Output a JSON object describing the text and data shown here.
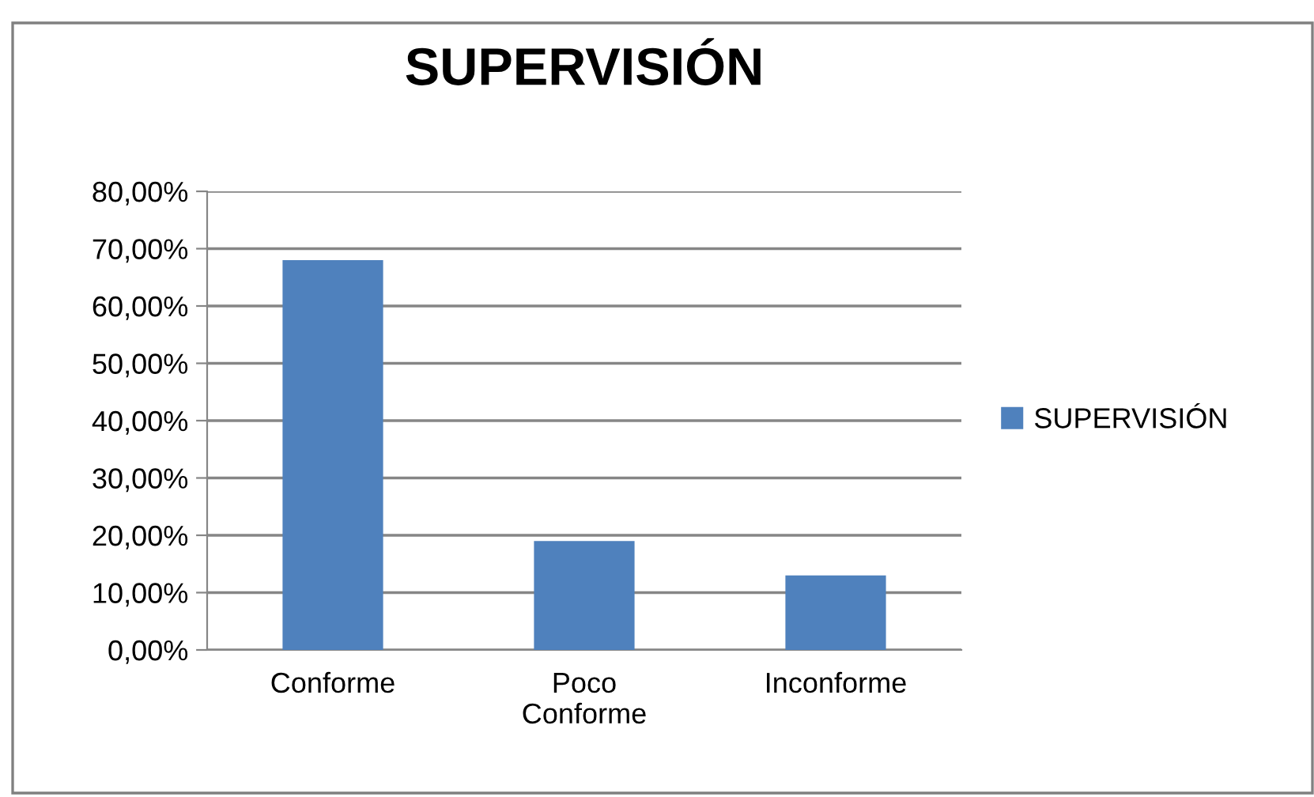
{
  "chart_data": {
    "type": "bar",
    "title": "SUPERVISIÓN",
    "categories": [
      "Conforme",
      "Poco\nConforme",
      "Inconforme"
    ],
    "series": [
      {
        "name": "SUPERVISIÓN",
        "color": "#4f81bd",
        "values": [
          68,
          19,
          13
        ]
      }
    ],
    "ylim": [
      0,
      80
    ],
    "yticks": [
      {
        "value": 0,
        "label": "0,00%"
      },
      {
        "value": 10,
        "label": "10,00%"
      },
      {
        "value": 20,
        "label": "20,00%"
      },
      {
        "value": 30,
        "label": "30,00%"
      },
      {
        "value": 40,
        "label": "40,00%"
      },
      {
        "value": 50,
        "label": "50,00%"
      },
      {
        "value": 60,
        "label": "60,00%"
      },
      {
        "value": 70,
        "label": "70,00%"
      },
      {
        "value": 80,
        "label": "80,00%"
      }
    ],
    "grid": "y",
    "legend": "right"
  }
}
